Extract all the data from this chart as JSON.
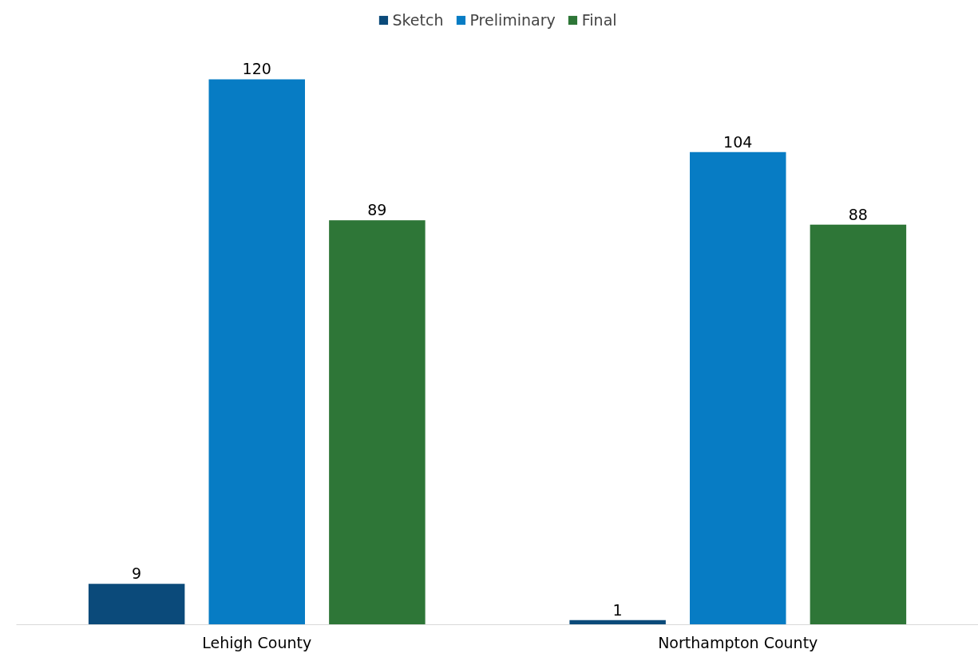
{
  "chart_data": {
    "type": "bar",
    "categories": [
      "Lehigh County",
      "Northampton County"
    ],
    "series": [
      {
        "name": "Sketch",
        "color": "#0b4a7a",
        "values": [
          9,
          1
        ]
      },
      {
        "name": "Preliminary",
        "color": "#077cc4",
        "values": [
          120,
          104
        ]
      },
      {
        "name": "Final",
        "color": "#2e7637",
        "values": [
          89,
          88
        ]
      }
    ],
    "data_labels": true,
    "legend": "top",
    "grid": false
  }
}
